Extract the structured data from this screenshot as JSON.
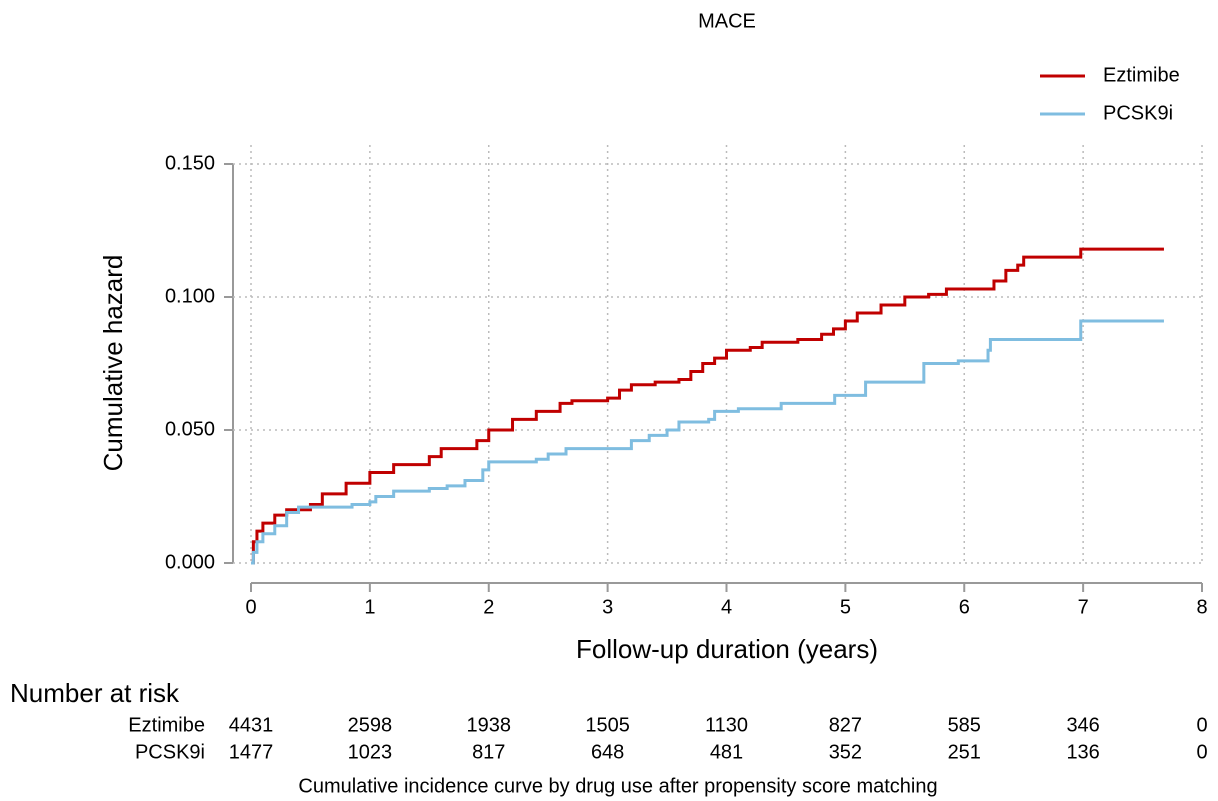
{
  "chart_data": {
    "type": "step",
    "title": "MACE",
    "x_label": "Follow-up duration (years)",
    "y_label": "Cumulative hazard",
    "caption": "Cumulative incidence curve by drug use after propensity score matching",
    "xlim": [
      0,
      8
    ],
    "xticks": [
      0,
      1,
      2,
      3,
      4,
      5,
      6,
      7,
      8
    ],
    "ylim": [
      0,
      0.15
    ],
    "yticks": [
      {
        "value": 0,
        "label": "0.000"
      },
      {
        "value": 0.05,
        "label": "0.050"
      },
      {
        "value": 0.1,
        "label": "0.100"
      },
      {
        "value": 0.15,
        "label": "0.150"
      }
    ],
    "grid": true,
    "legend": "top-right",
    "series": [
      {
        "name": "Eztimibe",
        "color": "#c00000",
        "x": [
          0,
          0.02,
          0.05,
          0.1,
          0.2,
          0.3,
          0.5,
          0.6,
          0.8,
          1.0,
          1.2,
          1.5,
          1.6,
          1.9,
          2.0,
          2.2,
          2.4,
          2.6,
          2.7,
          3.0,
          3.1,
          3.2,
          3.4,
          3.6,
          3.7,
          3.8,
          3.9,
          4.0,
          4.2,
          4.3,
          4.6,
          4.8,
          4.9,
          5.0,
          5.1,
          5.3,
          5.5,
          5.7,
          5.85,
          6.25,
          6.35,
          6.45,
          6.5,
          6.98,
          7.68
        ],
        "values": [
          0,
          0.008,
          0.012,
          0.015,
          0.018,
          0.02,
          0.022,
          0.026,
          0.03,
          0.034,
          0.037,
          0.04,
          0.043,
          0.046,
          0.05,
          0.054,
          0.057,
          0.06,
          0.061,
          0.062,
          0.065,
          0.067,
          0.068,
          0.069,
          0.072,
          0.075,
          0.077,
          0.08,
          0.081,
          0.083,
          0.084,
          0.086,
          0.088,
          0.091,
          0.094,
          0.097,
          0.1,
          0.101,
          0.103,
          0.106,
          0.11,
          0.112,
          0.115,
          0.118,
          0.118
        ]
      },
      {
        "name": "PCSK9i",
        "color": "#7fbde0",
        "x": [
          0,
          0.02,
          0.05,
          0.1,
          0.2,
          0.3,
          0.4,
          0.85,
          1.0,
          1.05,
          1.2,
          1.5,
          1.65,
          1.8,
          1.95,
          2.0,
          2.4,
          2.5,
          2.65,
          3.2,
          3.35,
          3.5,
          3.6,
          3.85,
          3.9,
          4.1,
          4.46,
          4.91,
          5.17,
          5.66,
          5.95,
          6.2,
          6.22,
          6.98,
          7.68
        ],
        "values": [
          0,
          0.004,
          0.008,
          0.011,
          0.014,
          0.019,
          0.021,
          0.022,
          0.023,
          0.025,
          0.027,
          0.028,
          0.029,
          0.031,
          0.035,
          0.038,
          0.039,
          0.041,
          0.043,
          0.046,
          0.048,
          0.05,
          0.053,
          0.054,
          0.057,
          0.058,
          0.06,
          0.063,
          0.068,
          0.075,
          0.076,
          0.08,
          0.084,
          0.091,
          0.091
        ]
      }
    ],
    "risk_table": {
      "title": "Number at risk",
      "rows": [
        [
          4431,
          2598,
          1938,
          1505,
          1130,
          827,
          585,
          346,
          0
        ],
        [
          1477,
          1023,
          817,
          648,
          481,
          352,
          251,
          136,
          0
        ]
      ]
    }
  }
}
